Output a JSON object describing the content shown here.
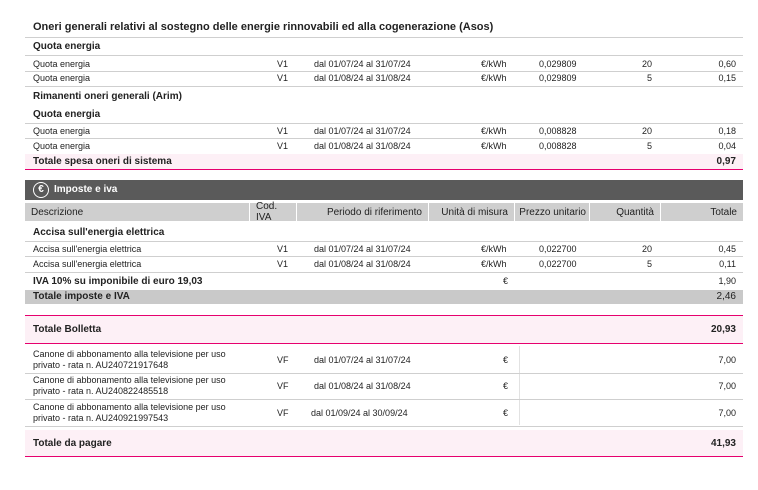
{
  "asos": {
    "title": "Oneri generali relativi al sostegno delle energie rinnovabili ed alla cogenerazione (Asos)",
    "sub": "Quota energia",
    "rows": [
      {
        "desc": "Quota energia",
        "cod": "V1",
        "period": "dal 01/07/24 al 31/07/24",
        "unit": "€/kWh",
        "price": "0,029809",
        "qty": "20",
        "total": "0,60"
      },
      {
        "desc": "Quota energia",
        "cod": "V1",
        "period": "dal 01/08/24 al 31/08/24",
        "unit": "€/kWh",
        "price": "0,029809",
        "qty": "5",
        "total": "0,15"
      }
    ]
  },
  "arim": {
    "title": "Rimanenti oneri generali (Arim)",
    "sub": "Quota energia",
    "rows": [
      {
        "desc": "Quota energia",
        "cod": "V1",
        "period": "dal 01/07/24 al 31/07/24",
        "unit": "€/kWh",
        "price": "0,008828",
        "qty": "20",
        "total": "0,18"
      },
      {
        "desc": "Quota energia",
        "cod": "V1",
        "period": "dal 01/08/24 al 31/08/24",
        "unit": "€/kWh",
        "price": "0,008828",
        "qty": "5",
        "total": "0,04"
      }
    ]
  },
  "oneri_total": {
    "label": "Totale spesa oneri di sistema",
    "value": "0,97"
  },
  "imposte": {
    "icon": "euro-circle-icon",
    "title": "Imposte e iva",
    "headers": {
      "desc": "Descrizione",
      "cod": "Cod. IVA",
      "period": "Periodo di riferimento",
      "unit": "Unità di misura",
      "price": "Prezzo unitario",
      "qty": "Quantità",
      "total": "Totale"
    },
    "accisa_title": "Accisa sull'energia elettrica",
    "rows": [
      {
        "desc": "Accisa sull'energia elettrica",
        "cod": "V1",
        "period": "dal 01/07/24 al 31/07/24",
        "unit": "€/kWh",
        "price": "0,022700",
        "qty": "20",
        "total": "0,45"
      },
      {
        "desc": "Accisa sull'energia elettrica",
        "cod": "V1",
        "period": "dal 01/08/24 al 31/08/24",
        "unit": "€/kWh",
        "price": "0,022700",
        "qty": "5",
        "total": "0,11"
      }
    ],
    "iva": {
      "label": "IVA 10% su imponibile di euro 19,03",
      "unit": "€",
      "value": "1,90"
    },
    "total": {
      "label": "Totale imposte e IVA",
      "value": "2,46"
    }
  },
  "bolletta": {
    "label": "Totale Bolletta",
    "value": "20,93"
  },
  "canone": [
    {
      "line1": "Canone di abbonamento alla televisione per uso",
      "line2": "privato - rata n. AU240721917648",
      "cod": "VF",
      "period": "dal 01/07/24 al 31/07/24",
      "unit": "€",
      "total": "7,00"
    },
    {
      "line1": "Canone di abbonamento alla televisione per uso",
      "line2": "privato - rata n. AU240822485518",
      "cod": "VF",
      "period": "dal 01/08/24 al 31/08/24",
      "unit": "€",
      "total": "7,00"
    },
    {
      "line1": "Canone di abbonamento alla televisione per uso",
      "line2": "privato - rata n. AU240921997543",
      "cod": "VF",
      "period": "dal 01/09/24 al 30/09/24",
      "unit": "€",
      "total": "7,00"
    }
  ],
  "pagare": {
    "label": "Totale da pagare",
    "value": "41,93"
  },
  "colors": {
    "accent": "#e6006e",
    "dark_header": "#5a5a5a",
    "gray": "#cfcfcf",
    "pink_bg": "#fdf0f6"
  }
}
